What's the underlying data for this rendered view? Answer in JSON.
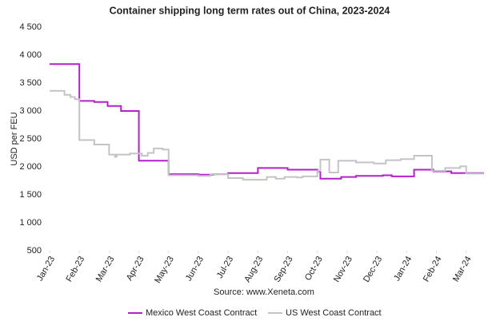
{
  "chart_data": {
    "type": "line",
    "step": true,
    "title": "Container shipping long term rates out of China, 2023-2024",
    "y_label": "USD per FEU",
    "source": "Source: www.Xeneta.com",
    "xlim": [
      0,
      14.6
    ],
    "xticks": [
      {
        "value": 0,
        "label": "Jan-23"
      },
      {
        "value": 1,
        "label": "Feb-23"
      },
      {
        "value": 2,
        "label": "Mar-23"
      },
      {
        "value": 3,
        "label": "Apr-23"
      },
      {
        "value": 4,
        "label": "May-23"
      },
      {
        "value": 5,
        "label": "Jun-23"
      },
      {
        "value": 6,
        "label": "Jul-23"
      },
      {
        "value": 7,
        "label": "Aug-23"
      },
      {
        "value": 8,
        "label": "Sep-23"
      },
      {
        "value": 9,
        "label": "Oct-23"
      },
      {
        "value": 10,
        "label": "Nov-23"
      },
      {
        "value": 11,
        "label": "Dec-23"
      },
      {
        "value": 12,
        "label": "Jan-24"
      },
      {
        "value": 13,
        "label": "Feb-24"
      },
      {
        "value": 14,
        "label": "Mar-24"
      }
    ],
    "ylim": [
      500,
      4500
    ],
    "yticks": [
      500,
      {
        "value": 1000,
        "label": "1 000"
      },
      {
        "value": 1500,
        "label": "1 500"
      },
      {
        "value": 2000,
        "label": "2 000"
      },
      {
        "value": 2500,
        "label": "2 500"
      },
      {
        "value": 3000,
        "label": "3 000"
      },
      {
        "value": 3500,
        "label": "3 500"
      },
      {
        "value": 4000,
        "label": "4 000"
      },
      {
        "value": 4500,
        "label": "4 500"
      }
    ],
    "legend": "bottom",
    "series": [
      {
        "name": "Mexico West Coast Contract",
        "color": "#b51fcc",
        "x": [
          0,
          1.0,
          1.5,
          1.95,
          2.4,
          3.0,
          4.0,
          5.0,
          5.5,
          6.0,
          7.0,
          8.0,
          9.0,
          9.1,
          9.8,
          10.3,
          11.2,
          11.5,
          12.25,
          12.9,
          13.5,
          14.6
        ],
        "values": [
          3840,
          3180,
          3160,
          3090,
          3000,
          2110,
          1870,
          1860,
          1870,
          1890,
          1980,
          1950,
          1920,
          1790,
          1820,
          1840,
          1850,
          1830,
          1950,
          1920,
          1890,
          1890
        ]
      },
      {
        "name": "US West Coast Contract",
        "color": "#c3c3c8",
        "x": [
          0,
          0.5,
          0.7,
          0.85,
          1.0,
          1.5,
          2.0,
          2.2,
          2.25,
          2.7,
          3.1,
          3.3,
          3.5,
          3.8,
          4.0,
          5.0,
          5.4,
          6.0,
          6.5,
          7.3,
          7.6,
          7.9,
          8.3,
          8.5,
          9.0,
          9.1,
          9.4,
          9.7,
          10.3,
          10.9,
          11.3,
          11.8,
          12.25,
          12.85,
          13.3,
          13.8,
          14.0,
          14.6
        ],
        "values": [
          3360,
          3290,
          3250,
          3210,
          2480,
          2400,
          2220,
          2180,
          2220,
          2240,
          2200,
          2250,
          2330,
          2310,
          1850,
          1840,
          1870,
          1800,
          1770,
          1820,
          1790,
          1820,
          1810,
          1830,
          1930,
          2130,
          1900,
          2110,
          2080,
          2060,
          2120,
          2140,
          2200,
          1930,
          1980,
          2010,
          1880,
          1880
        ]
      }
    ]
  }
}
